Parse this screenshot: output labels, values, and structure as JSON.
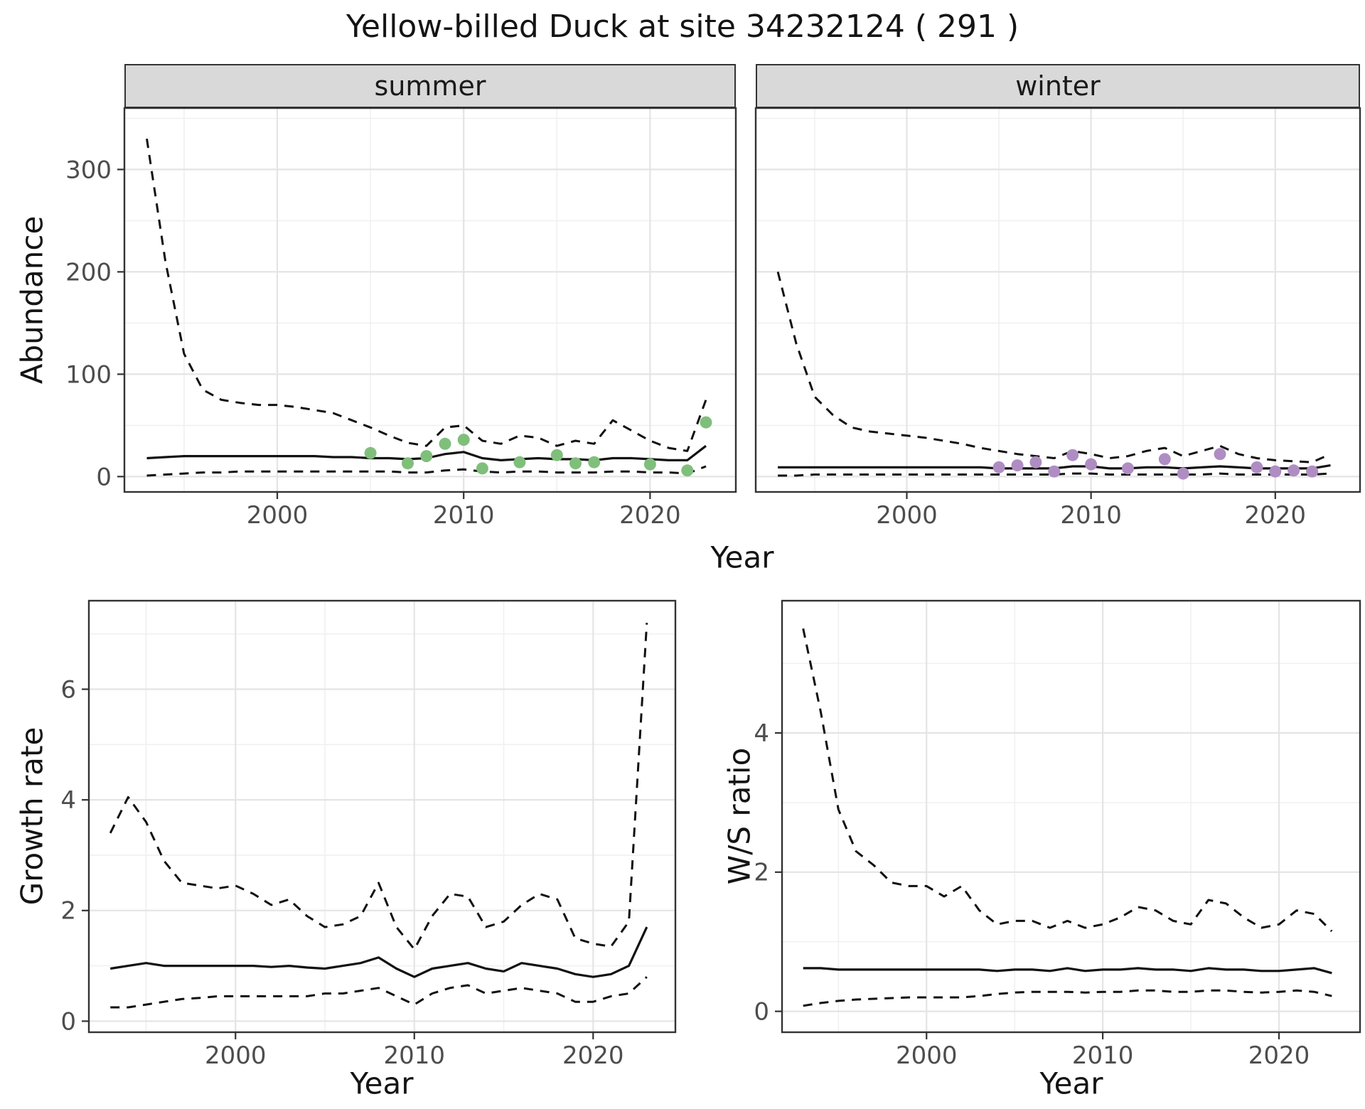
{
  "title": "Yellow-billed Duck at site 34232124 ( 291 )",
  "axes": {
    "x": "Year",
    "y_abundance": "Abundance",
    "y_growth": "Growth rate",
    "y_ws": "W/S ratio"
  },
  "chart_data": [
    {
      "id": "abundance_summer",
      "type": "line",
      "facet": "summer",
      "xlabel": "Year",
      "ylabel": "Abundance",
      "xlim": [
        1991.8,
        2024.6
      ],
      "ylim": [
        -15,
        360
      ],
      "xticks": {
        "major": [
          2000,
          2010,
          2020
        ],
        "minor": [
          1995,
          2005,
          2015
        ]
      },
      "yticks": {
        "major": [
          0,
          100,
          200,
          300
        ],
        "minor": [
          50,
          150,
          250,
          350
        ]
      },
      "show_y_tick_labels": true,
      "x": [
        1993,
        1994,
        1995,
        1996,
        1997,
        1998,
        1999,
        2000,
        2001,
        2002,
        2003,
        2004,
        2005,
        2006,
        2007,
        2008,
        2009,
        2010,
        2011,
        2012,
        2013,
        2014,
        2015,
        2016,
        2017,
        2018,
        2019,
        2020,
        2021,
        2022,
        2023
      ],
      "series": [
        {
          "name": "upper_95ci",
          "style": "dashed",
          "color": "#111111",
          "values": [
            330,
            210,
            120,
            85,
            75,
            72,
            70,
            70,
            68,
            65,
            62,
            55,
            48,
            40,
            33,
            30,
            48,
            50,
            35,
            32,
            40,
            38,
            30,
            35,
            32,
            55,
            45,
            35,
            28,
            25,
            75
          ]
        },
        {
          "name": "median",
          "style": "solid",
          "color": "#111111",
          "values": [
            18,
            19,
            20,
            20,
            20,
            20,
            20,
            20,
            20,
            20,
            19,
            19,
            18,
            18,
            17,
            18,
            22,
            24,
            18,
            16,
            17,
            18,
            17,
            17,
            16,
            18,
            18,
            17,
            16,
            16,
            30
          ]
        },
        {
          "name": "lower_95ci",
          "style": "dashed",
          "color": "#111111",
          "values": [
            1,
            2,
            3,
            4,
            4,
            5,
            5,
            5,
            5,
            5,
            5,
            5,
            5,
            5,
            4,
            4,
            6,
            7,
            5,
            4,
            5,
            5,
            4,
            4,
            4,
            5,
            5,
            4,
            4,
            3,
            10
          ]
        }
      ],
      "points": {
        "name": "observed_summer",
        "color": "#7fbf7b",
        "x": [
          2005,
          2007,
          2008,
          2009,
          2010,
          2011,
          2013,
          2015,
          2016,
          2017,
          2020,
          2022,
          2023
        ],
        "y": [
          23,
          13,
          20,
          32,
          36,
          8,
          14,
          21,
          13,
          14,
          12,
          6,
          53
        ]
      }
    },
    {
      "id": "abundance_winter",
      "type": "line",
      "facet": "winter",
      "xlabel": "Year",
      "ylabel": "Abundance",
      "xlim": [
        1991.8,
        2024.6
      ],
      "ylim": [
        -15,
        360
      ],
      "xticks": {
        "major": [
          2000,
          2010,
          2020
        ],
        "minor": [
          1995,
          2005,
          2015
        ]
      },
      "yticks": {
        "major": [
          0,
          100,
          200,
          300
        ],
        "minor": [
          50,
          150,
          250,
          350
        ]
      },
      "show_y_tick_labels": false,
      "x": [
        1993,
        1994,
        1995,
        1996,
        1997,
        1998,
        1999,
        2000,
        2001,
        2002,
        2003,
        2004,
        2005,
        2006,
        2007,
        2008,
        2009,
        2010,
        2011,
        2012,
        2013,
        2014,
        2015,
        2016,
        2017,
        2018,
        2019,
        2020,
        2021,
        2022,
        2023
      ],
      "series": [
        {
          "name": "upper_95ci",
          "style": "dashed",
          "color": "#111111",
          "values": [
            200,
            130,
            78,
            60,
            48,
            44,
            42,
            40,
            38,
            35,
            32,
            28,
            25,
            22,
            20,
            18,
            25,
            22,
            18,
            20,
            25,
            28,
            20,
            25,
            30,
            22,
            18,
            16,
            15,
            14,
            22
          ]
        },
        {
          "name": "median",
          "style": "solid",
          "color": "#111111",
          "values": [
            9,
            9,
            9,
            9,
            9,
            9,
            9,
            9,
            9,
            9,
            9,
            9,
            8,
            8,
            8,
            8,
            10,
            10,
            8,
            8,
            9,
            9,
            8,
            9,
            10,
            9,
            8,
            8,
            8,
            8,
            11
          ]
        },
        {
          "name": "lower_95ci",
          "style": "dashed",
          "color": "#111111",
          "values": [
            1,
            1,
            2,
            2,
            2,
            2,
            2,
            2,
            2,
            2,
            2,
            2,
            2,
            2,
            2,
            2,
            3,
            3,
            2,
            2,
            2,
            2,
            2,
            2,
            3,
            2,
            2,
            2,
            2,
            2,
            3
          ]
        }
      ],
      "points": {
        "name": "observed_winter",
        "color": "#af8dc3",
        "x": [
          2005,
          2006,
          2007,
          2008,
          2009,
          2010,
          2012,
          2014,
          2015,
          2017,
          2019,
          2020,
          2021,
          2022
        ],
        "y": [
          9,
          11,
          14,
          5,
          21,
          12,
          8,
          17,
          3,
          22,
          9,
          5,
          6,
          5
        ]
      }
    },
    {
      "id": "growth_rate",
      "type": "line",
      "xlabel": "Year",
      "ylabel": "Growth rate",
      "xlim": [
        1991.8,
        2024.6
      ],
      "ylim": [
        -0.2,
        7.6
      ],
      "xticks": {
        "major": [
          2000,
          2010,
          2020
        ],
        "minor": [
          1995,
          2005,
          2015
        ]
      },
      "yticks": {
        "major": [
          0,
          2,
          4,
          6
        ],
        "minor": [
          1,
          3,
          5,
          7
        ]
      },
      "show_y_tick_labels": true,
      "x": [
        1993,
        1994,
        1995,
        1996,
        1997,
        1998,
        1999,
        2000,
        2001,
        2002,
        2003,
        2004,
        2005,
        2006,
        2007,
        2008,
        2009,
        2010,
        2011,
        2012,
        2013,
        2014,
        2015,
        2016,
        2017,
        2018,
        2019,
        2020,
        2021,
        2022,
        2023
      ],
      "series": [
        {
          "name": "upper_95ci",
          "style": "dashed",
          "color": "#111111",
          "values": [
            3.4,
            4.05,
            3.6,
            2.9,
            2.5,
            2.45,
            2.4,
            2.45,
            2.3,
            2.1,
            2.2,
            1.9,
            1.7,
            1.75,
            1.9,
            2.5,
            1.7,
            1.3,
            1.9,
            2.3,
            2.25,
            1.7,
            1.8,
            2.1,
            2.3,
            2.2,
            1.5,
            1.4,
            1.35,
            1.8,
            7.2
          ]
        },
        {
          "name": "median",
          "style": "solid",
          "color": "#111111",
          "values": [
            0.95,
            1.0,
            1.05,
            1.0,
            1.0,
            1.0,
            1.0,
            1.0,
            1.0,
            0.98,
            1.0,
            0.97,
            0.95,
            1.0,
            1.05,
            1.15,
            0.95,
            0.8,
            0.95,
            1.0,
            1.05,
            0.95,
            0.9,
            1.05,
            1.0,
            0.95,
            0.85,
            0.8,
            0.85,
            1.0,
            1.7
          ]
        },
        {
          "name": "lower_95ci",
          "style": "dashed",
          "color": "#111111",
          "values": [
            0.25,
            0.25,
            0.3,
            0.35,
            0.4,
            0.42,
            0.45,
            0.45,
            0.45,
            0.45,
            0.45,
            0.45,
            0.5,
            0.5,
            0.55,
            0.6,
            0.45,
            0.3,
            0.5,
            0.6,
            0.65,
            0.5,
            0.55,
            0.6,
            0.55,
            0.5,
            0.35,
            0.35,
            0.45,
            0.5,
            0.8
          ]
        }
      ]
    },
    {
      "id": "ws_ratio",
      "type": "line",
      "xlabel": "Year",
      "ylabel": "W/S ratio",
      "xlim": [
        1991.8,
        2024.6
      ],
      "ylim": [
        -0.3,
        5.9
      ],
      "xticks": {
        "major": [
          2000,
          2010,
          2020
        ],
        "minor": [
          1995,
          2005,
          2015
        ]
      },
      "yticks": {
        "major": [
          0,
          2,
          4
        ],
        "minor": [
          1,
          3,
          5
        ]
      },
      "show_y_tick_labels": true,
      "x": [
        1993,
        1994,
        1995,
        1996,
        1997,
        1998,
        1999,
        2000,
        2001,
        2002,
        2003,
        2004,
        2005,
        2006,
        2007,
        2008,
        2009,
        2010,
        2011,
        2012,
        2013,
        2014,
        2015,
        2016,
        2017,
        2018,
        2019,
        2020,
        2021,
        2022,
        2023
      ],
      "series": [
        {
          "name": "upper_95ci",
          "style": "dashed",
          "color": "#111111",
          "values": [
            5.5,
            4.3,
            2.9,
            2.3,
            2.1,
            1.85,
            1.8,
            1.8,
            1.65,
            1.8,
            1.45,
            1.25,
            1.3,
            1.3,
            1.2,
            1.3,
            1.2,
            1.25,
            1.35,
            1.5,
            1.45,
            1.3,
            1.25,
            1.6,
            1.55,
            1.35,
            1.2,
            1.25,
            1.45,
            1.4,
            1.15
          ]
        },
        {
          "name": "median",
          "style": "solid",
          "color": "#111111",
          "values": [
            0.62,
            0.62,
            0.6,
            0.6,
            0.6,
            0.6,
            0.6,
            0.6,
            0.6,
            0.6,
            0.6,
            0.58,
            0.6,
            0.6,
            0.58,
            0.62,
            0.58,
            0.6,
            0.6,
            0.62,
            0.6,
            0.6,
            0.58,
            0.62,
            0.6,
            0.6,
            0.58,
            0.58,
            0.6,
            0.62,
            0.55
          ]
        },
        {
          "name": "lower_95ci",
          "style": "dashed",
          "color": "#111111",
          "values": [
            0.08,
            0.12,
            0.15,
            0.17,
            0.18,
            0.19,
            0.2,
            0.2,
            0.2,
            0.2,
            0.22,
            0.25,
            0.27,
            0.28,
            0.28,
            0.28,
            0.27,
            0.28,
            0.28,
            0.3,
            0.3,
            0.28,
            0.28,
            0.3,
            0.3,
            0.28,
            0.27,
            0.28,
            0.3,
            0.28,
            0.22
          ]
        }
      ]
    }
  ]
}
